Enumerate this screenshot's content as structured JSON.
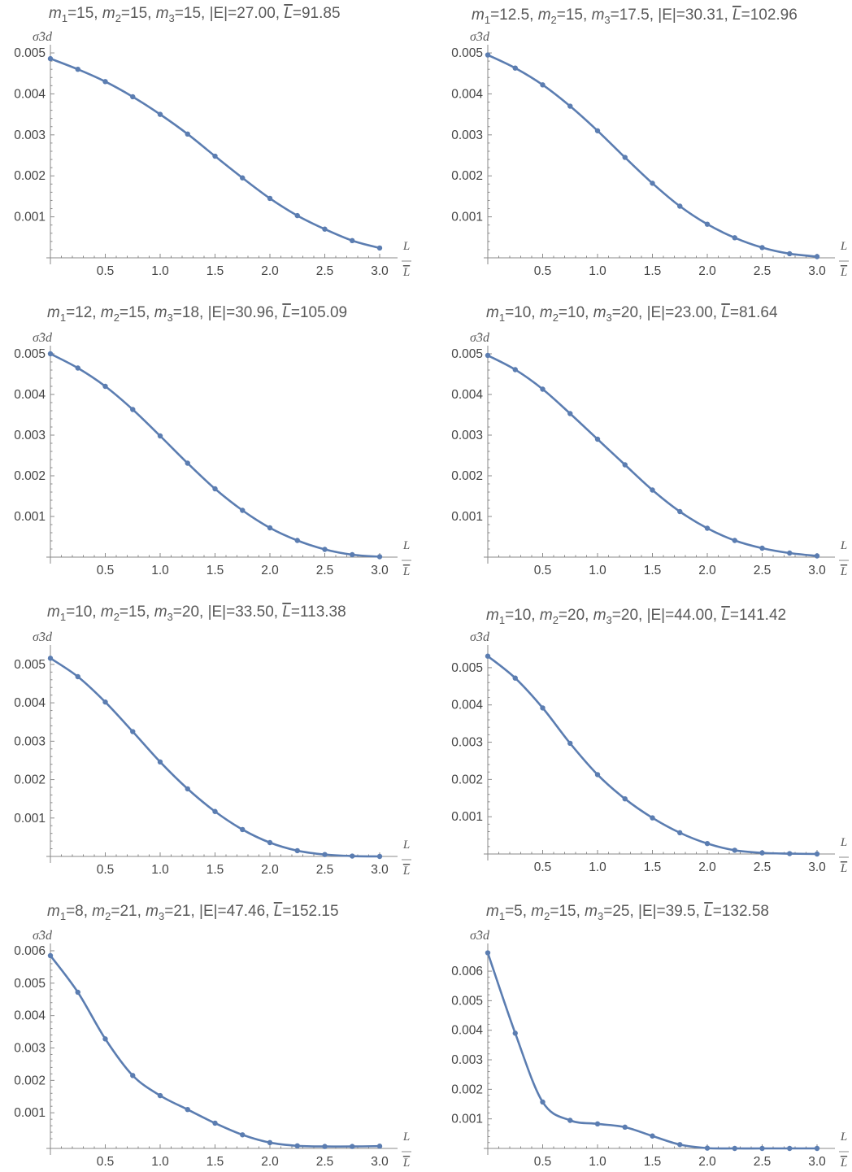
{
  "chart_data": [
    {
      "type": "line",
      "title_parts": [
        "m",
        "1",
        "=15, ",
        "m",
        "2",
        "=15, ",
        "m",
        "3",
        "=15, |E|=27.00, ",
        "L",
        "=91.85"
      ],
      "ylabel": "σ̂3d",
      "xlabel_num": "L",
      "xlabel_den": "L",
      "x_ticks": [
        "0.5",
        "1.0",
        "1.5",
        "2.0",
        "2.5",
        "3.0"
      ],
      "y_ticks": [
        "0.001",
        "0.002",
        "0.003",
        "0.004",
        "0.005"
      ],
      "xlim": [
        0,
        3.0
      ],
      "ylim": [
        0,
        0.0051
      ],
      "color": "#5B7DB1",
      "series": [
        {
          "x": [
            0,
            0.25,
            0.5,
            0.75,
            1.0,
            1.25,
            1.5,
            1.75,
            2.0,
            2.25,
            2.5,
            2.75,
            3.0
          ],
          "values": [
            0.00486,
            0.0046,
            0.0043,
            0.00393,
            0.0035,
            0.00302,
            0.00248,
            0.00195,
            0.00145,
            0.00103,
            0.0007,
            0.00042,
            0.00024
          ]
        }
      ]
    },
    {
      "type": "line",
      "title_parts": [
        "m",
        "1",
        "=12.5, ",
        "m",
        "2",
        "=15, ",
        "m",
        "3",
        "=17.5, |E|=30.31, ",
        "L",
        "=102.96"
      ],
      "ylabel": "σ̂3d",
      "xlabel_num": "L",
      "xlabel_den": "L",
      "x_ticks": [
        "0.5",
        "1.0",
        "1.5",
        "2.0",
        "2.5",
        "3.0"
      ],
      "y_ticks": [
        "0.001",
        "0.002",
        "0.003",
        "0.004",
        "0.005"
      ],
      "xlim": [
        0,
        3.0
      ],
      "ylim": [
        0,
        0.0051
      ],
      "color": "#5B7DB1",
      "series": [
        {
          "x": [
            0,
            0.25,
            0.5,
            0.75,
            1.0,
            1.25,
            1.5,
            1.75,
            2.0,
            2.25,
            2.5,
            2.75,
            3.0
          ],
          "values": [
            0.00495,
            0.00463,
            0.00422,
            0.0037,
            0.0031,
            0.00245,
            0.00182,
            0.00126,
            0.00082,
            0.00049,
            0.00025,
            0.0001,
            3e-05
          ]
        }
      ]
    },
    {
      "type": "line",
      "title_parts": [
        "m",
        "1",
        "=12, ",
        "m",
        "2",
        "=15, ",
        "m",
        "3",
        "=18, |E|=30.96, ",
        "L",
        "=105.09"
      ],
      "ylabel": "σ̂3d",
      "xlabel_num": "L",
      "xlabel_den": "L",
      "x_ticks": [
        "0.5",
        "1.0",
        "1.5",
        "2.0",
        "2.5",
        "3.0"
      ],
      "y_ticks": [
        "0.001",
        "0.002",
        "0.003",
        "0.004",
        "0.005"
      ],
      "xlim": [
        0,
        3.0
      ],
      "ylim": [
        0,
        0.0051
      ],
      "color": "#5B7DB1",
      "series": [
        {
          "x": [
            0,
            0.25,
            0.5,
            0.75,
            1.0,
            1.25,
            1.5,
            1.75,
            2.0,
            2.25,
            2.5,
            2.75,
            3.0
          ],
          "values": [
            0.005,
            0.00465,
            0.0042,
            0.00363,
            0.00298,
            0.00231,
            0.00168,
            0.00115,
            0.00072,
            0.00041,
            0.00019,
            6e-05,
            1e-05
          ]
        }
      ]
    },
    {
      "type": "line",
      "title_parts": [
        "m",
        "1",
        "=10, ",
        "m",
        "2",
        "=10, ",
        "m",
        "3",
        "=20, |E|=23.00, ",
        "L",
        "=81.64"
      ],
      "ylabel": "σ̂3d",
      "xlabel_num": "L",
      "xlabel_den": "L",
      "x_ticks": [
        "0.5",
        "1.0",
        "1.5",
        "2.0",
        "2.5",
        "3.0"
      ],
      "y_ticks": [
        "0.001",
        "0.002",
        "0.003",
        "0.004",
        "0.005"
      ],
      "xlim": [
        0,
        3.0
      ],
      "ylim": [
        0,
        0.0051
      ],
      "color": "#5B7DB1",
      "series": [
        {
          "x": [
            0,
            0.25,
            0.5,
            0.75,
            1.0,
            1.25,
            1.5,
            1.75,
            2.0,
            2.25,
            2.5,
            2.75,
            3.0
          ],
          "values": [
            0.00496,
            0.00461,
            0.00413,
            0.00353,
            0.0029,
            0.00227,
            0.00165,
            0.00112,
            0.00071,
            0.00041,
            0.00022,
            0.0001,
            3e-05
          ]
        }
      ]
    },
    {
      "type": "line",
      "title_parts": [
        "m",
        "1",
        "=10, ",
        "m",
        "2",
        "=15, ",
        "m",
        "3",
        "=20, |E|=33.50, ",
        "L",
        "=113.38"
      ],
      "ylabel": "σ̂3d",
      "xlabel_num": "L",
      "xlabel_den": "L",
      "x_ticks": [
        "0.5",
        "1.0",
        "1.5",
        "2.0",
        "2.5",
        "3.0"
      ],
      "y_ticks": [
        "0.001",
        "0.002",
        "0.003",
        "0.004",
        "0.005"
      ],
      "xlim": [
        0,
        3.0
      ],
      "ylim": [
        0,
        0.0054
      ],
      "color": "#5B7DB1",
      "series": [
        {
          "x": [
            0,
            0.25,
            0.5,
            0.75,
            1.0,
            1.25,
            1.5,
            1.75,
            2.0,
            2.25,
            2.5,
            2.75,
            3.0
          ],
          "values": [
            0.00516,
            0.00468,
            0.00402,
            0.00325,
            0.00246,
            0.00176,
            0.00117,
            0.0007,
            0.00036,
            0.00015,
            5e-05,
            1e-05,
            0.0
          ]
        }
      ]
    },
    {
      "type": "line",
      "title_parts": [
        "m",
        "1",
        "=10, ",
        "m",
        "2",
        "=20, ",
        "m",
        "3",
        "=20, |E|=44.00, ",
        "L",
        "=141.42"
      ],
      "ylabel": "σ̂3d",
      "xlabel_num": "L",
      "xlabel_den": "L",
      "x_ticks": [
        "0.5",
        "1.0",
        "1.5",
        "2.0",
        "2.5",
        "3.0"
      ],
      "y_ticks": [
        "0.001",
        "0.002",
        "0.003",
        "0.004",
        "0.005"
      ],
      "xlim": [
        0,
        3.0
      ],
      "ylim": [
        0,
        0.0055
      ],
      "color": "#5B7DB1",
      "series": [
        {
          "x": [
            0,
            0.25,
            0.5,
            0.75,
            1.0,
            1.25,
            1.5,
            1.75,
            2.0,
            2.25,
            2.5,
            2.75,
            3.0
          ],
          "values": [
            0.00531,
            0.00472,
            0.00392,
            0.00297,
            0.00213,
            0.00148,
            0.00097,
            0.00057,
            0.00028,
            0.0001,
            3e-05,
            1e-05,
            0.0
          ]
        }
      ]
    },
    {
      "type": "line",
      "title_parts": [
        "m",
        "1",
        "=8, ",
        "m",
        "2",
        "=21, ",
        "m",
        "3",
        "=21, |E|=47.46, ",
        "L",
        "=152.15"
      ],
      "ylabel": "σ̂3d",
      "xlabel_num": "L",
      "xlabel_den": "L",
      "x_ticks": [
        "0.5",
        "1.0",
        "1.5",
        "2.0",
        "2.5",
        "3.0"
      ],
      "y_ticks": [
        "0.001",
        "0.002",
        "0.003",
        "0.004",
        "0.005",
        "0.006"
      ],
      "xlim": [
        0,
        3.0
      ],
      "ylim": [
        -0.0001,
        0.0061
      ],
      "color": "#5B7DB1",
      "series": [
        {
          "x": [
            0,
            0.25,
            0.5,
            0.75,
            1.0,
            1.25,
            1.5,
            1.75,
            2.0,
            2.25,
            2.5,
            2.75,
            3.0
          ],
          "values": [
            0.00585,
            0.00472,
            0.00328,
            0.00215,
            0.00153,
            0.0011,
            0.00068,
            0.00032,
            8e-05,
            -2e-05,
            -4e-05,
            -4e-05,
            -3e-05
          ]
        }
      ]
    },
    {
      "type": "line",
      "title_parts": [
        "m",
        "1",
        "=5, ",
        "m",
        "2",
        "=15, ",
        "m",
        "3",
        "=25, |E|=39.5, ",
        "L",
        "=132.58"
      ],
      "ylabel": "σ̂3d",
      "xlabel_num": "L",
      "xlabel_den": "L",
      "x_ticks": [
        "0.5",
        "1.0",
        "1.5",
        "2.0",
        "2.5",
        "3.0"
      ],
      "y_ticks": [
        "0.001",
        "0.002",
        "0.003",
        "0.004",
        "0.005",
        "0.006"
      ],
      "xlim": [
        0,
        3.0
      ],
      "ylim": [
        0,
        0.0068
      ],
      "color": "#5B7DB1",
      "series": [
        {
          "x": [
            0,
            0.25,
            0.5,
            0.75,
            1.0,
            1.25,
            1.5,
            1.75,
            2.0,
            2.25,
            2.5,
            2.75,
            3.0
          ],
          "values": [
            0.00662,
            0.0039,
            0.00157,
            0.00095,
            0.00083,
            0.00072,
            0.00042,
            0.00013,
            1e-05,
            0.0,
            0.0,
            0.0,
            0.0
          ]
        }
      ]
    }
  ]
}
